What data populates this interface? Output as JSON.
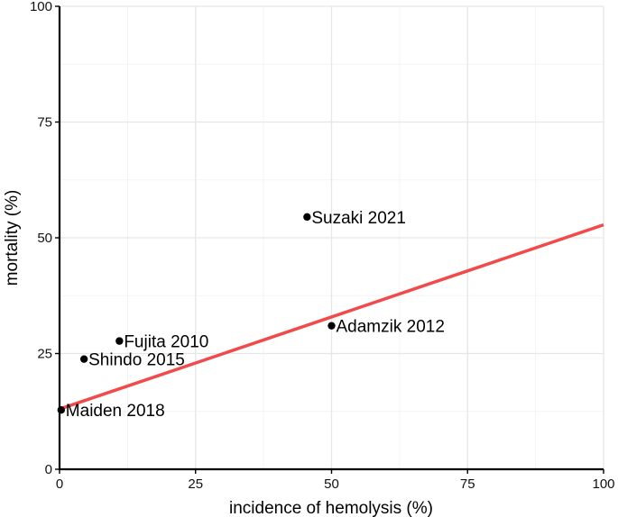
{
  "chart_data": {
    "type": "scatter",
    "xlabel": "incidence of hemolysis (%)",
    "ylabel": "mortality (%)",
    "xlim": [
      0,
      100
    ],
    "ylim": [
      0,
      100
    ],
    "x_ticks": [
      "0",
      "25",
      "50",
      "75",
      "100"
    ],
    "y_ticks": [
      "0",
      "25",
      "50",
      "75",
      "100"
    ],
    "grid": true,
    "points": [
      {
        "label": "Suzaki 2021",
        "x": 45.5,
        "y": 54.5
      },
      {
        "label": "Adamzik 2012",
        "x": 50,
        "y": 31
      },
      {
        "label": "Fujita 2010",
        "x": 11,
        "y": 27.7
      },
      {
        "label": "Shindo 2015",
        "x": 4.5,
        "y": 23.8
      },
      {
        "label": "Maiden 2018",
        "x": 0.3,
        "y": 12.8
      }
    ],
    "trendline": {
      "x": [
        0,
        100
      ],
      "y": [
        13,
        52.8
      ],
      "color": "#f24a4a"
    },
    "point_color": "#000000"
  }
}
